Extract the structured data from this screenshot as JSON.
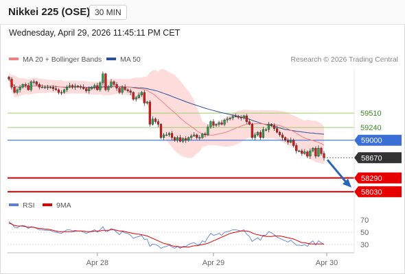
{
  "header": {
    "title": "Nikkei 225 (OSE)",
    "timeframe": "30 MIN",
    "datetime": "Wednesday, April 29, 2026 11:45:11 PM CET"
  },
  "legend": {
    "ma20": "MA 20 + Bollinger Bands",
    "ma50": "MA 50",
    "copyright": "Research © 2026 Trading Central"
  },
  "rsi_legend": {
    "rsi": "RSI",
    "ma9": "9MA"
  },
  "colors": {
    "bull": "#2aa24a",
    "bear": "#d91a1a",
    "ma20": "#f08080",
    "ma50": "#2c4f9c",
    "band": "#fdd8d8",
    "resistance": "#9ccd6e",
    "pivot": "#3a6fd8",
    "support": "#e00000",
    "last": "#333333",
    "rsi": "#5b7fd8"
  },
  "chart_data": [
    {
      "type": "candlestick",
      "x_ticks": [
        "Apr 28",
        "Apr 29",
        "Apr 30"
      ],
      "ylim": [
        57900,
        60350
      ],
      "levels": [
        {
          "label": "59510",
          "value": 59510,
          "kind": "resistance"
        },
        {
          "label": "59240",
          "value": 59240,
          "kind": "resistance"
        },
        {
          "label": "59000",
          "value": 59000,
          "kind": "pivot"
        },
        {
          "label": "58670",
          "value": 58670,
          "kind": "last"
        },
        {
          "label": "58290",
          "value": 58290,
          "kind": "support"
        },
        {
          "label": "58030",
          "value": 58030,
          "kind": "support"
        }
      ],
      "close": [
        60150,
        60000,
        59900,
        59950,
        60000,
        60050,
        60030,
        59950,
        60100,
        60100,
        60050,
        60000,
        60000,
        60000,
        60000,
        60000,
        59970,
        59950,
        59900,
        59900,
        59950,
        60000,
        60030,
        60000,
        60020,
        60010,
        60000,
        59970,
        59930,
        59970,
        60000,
        60030,
        59950,
        60080,
        60250,
        59950,
        60000,
        60100,
        60050,
        59980,
        59900,
        60000,
        59950,
        59930,
        59900,
        59770,
        59800,
        59850,
        59900,
        59700,
        59720,
        59300,
        59400,
        59350,
        59300,
        59050,
        59100,
        59100,
        59130,
        59050,
        59000,
        59050,
        58980,
        59030,
        59000,
        59050,
        59080,
        59100,
        59050,
        59050,
        59120,
        59100,
        59250,
        59350,
        59280,
        59300,
        59330,
        59300,
        59380,
        59400,
        59420,
        59450,
        59450,
        59430,
        59420,
        59460,
        59350,
        59300,
        59050,
        59100,
        59150,
        59050,
        59200,
        59200,
        59300,
        59280,
        59220,
        59150,
        59100,
        59050,
        59000,
        58960,
        59000,
        58900,
        58800,
        58800,
        58750,
        58780,
        58700,
        58800,
        58850,
        58700,
        58850,
        58750,
        58670
      ],
      "rsi": {
        "ylim": [
          20,
          80
        ],
        "ticks": [
          30,
          50,
          70
        ],
        "rsi": [
          67,
          64,
          58,
          57,
          60,
          61,
          60,
          56,
          59,
          58,
          56,
          54,
          54,
          53,
          53,
          53,
          51,
          50,
          49,
          48,
          51,
          54,
          54,
          52,
          53,
          52,
          52,
          50,
          48,
          50,
          52,
          54,
          50,
          54,
          59,
          51,
          52,
          56,
          54,
          50,
          46,
          51,
          49,
          48,
          45,
          40,
          42,
          43,
          45,
          38,
          39,
          27,
          31,
          30,
          28,
          24,
          26,
          27,
          29,
          26,
          24,
          27,
          24,
          27,
          27,
          30,
          32,
          33,
          30,
          30,
          36,
          34,
          42,
          48,
          45,
          46,
          48,
          45,
          50,
          51,
          52,
          54,
          54,
          53,
          52,
          54,
          47,
          43,
          35,
          38,
          41,
          37,
          45,
          45,
          51,
          49,
          46,
          42,
          40,
          38,
          36,
          34,
          37,
          33,
          29,
          29,
          28,
          30,
          27,
          33,
          36,
          29,
          36,
          33,
          30
        ],
        "ma9": [
          65,
          63,
          61,
          60,
          60,
          60,
          59,
          58,
          58,
          58,
          57,
          56,
          56,
          55,
          55,
          54,
          53,
          52,
          51,
          51,
          51,
          51,
          51,
          51,
          52,
          52,
          52,
          52,
          51,
          51,
          51,
          52,
          52,
          52,
          53,
          53,
          53,
          54,
          54,
          53,
          52,
          52,
          51,
          50,
          49,
          48,
          47,
          47,
          46,
          45,
          44,
          42,
          40,
          38,
          36,
          34,
          32,
          31,
          30,
          28,
          27,
          27,
          26,
          26,
          26,
          26,
          27,
          28,
          28,
          29,
          30,
          31,
          32,
          34,
          36,
          38,
          40,
          42,
          44,
          46,
          48,
          49,
          50,
          51,
          52,
          52,
          52,
          51,
          49,
          47,
          46,
          45,
          44,
          43,
          43,
          43,
          44,
          44,
          44,
          43,
          42,
          41,
          40,
          39,
          37,
          35,
          33,
          33,
          32,
          31,
          31,
          31,
          31,
          31,
          31
        ]
      }
    }
  ]
}
